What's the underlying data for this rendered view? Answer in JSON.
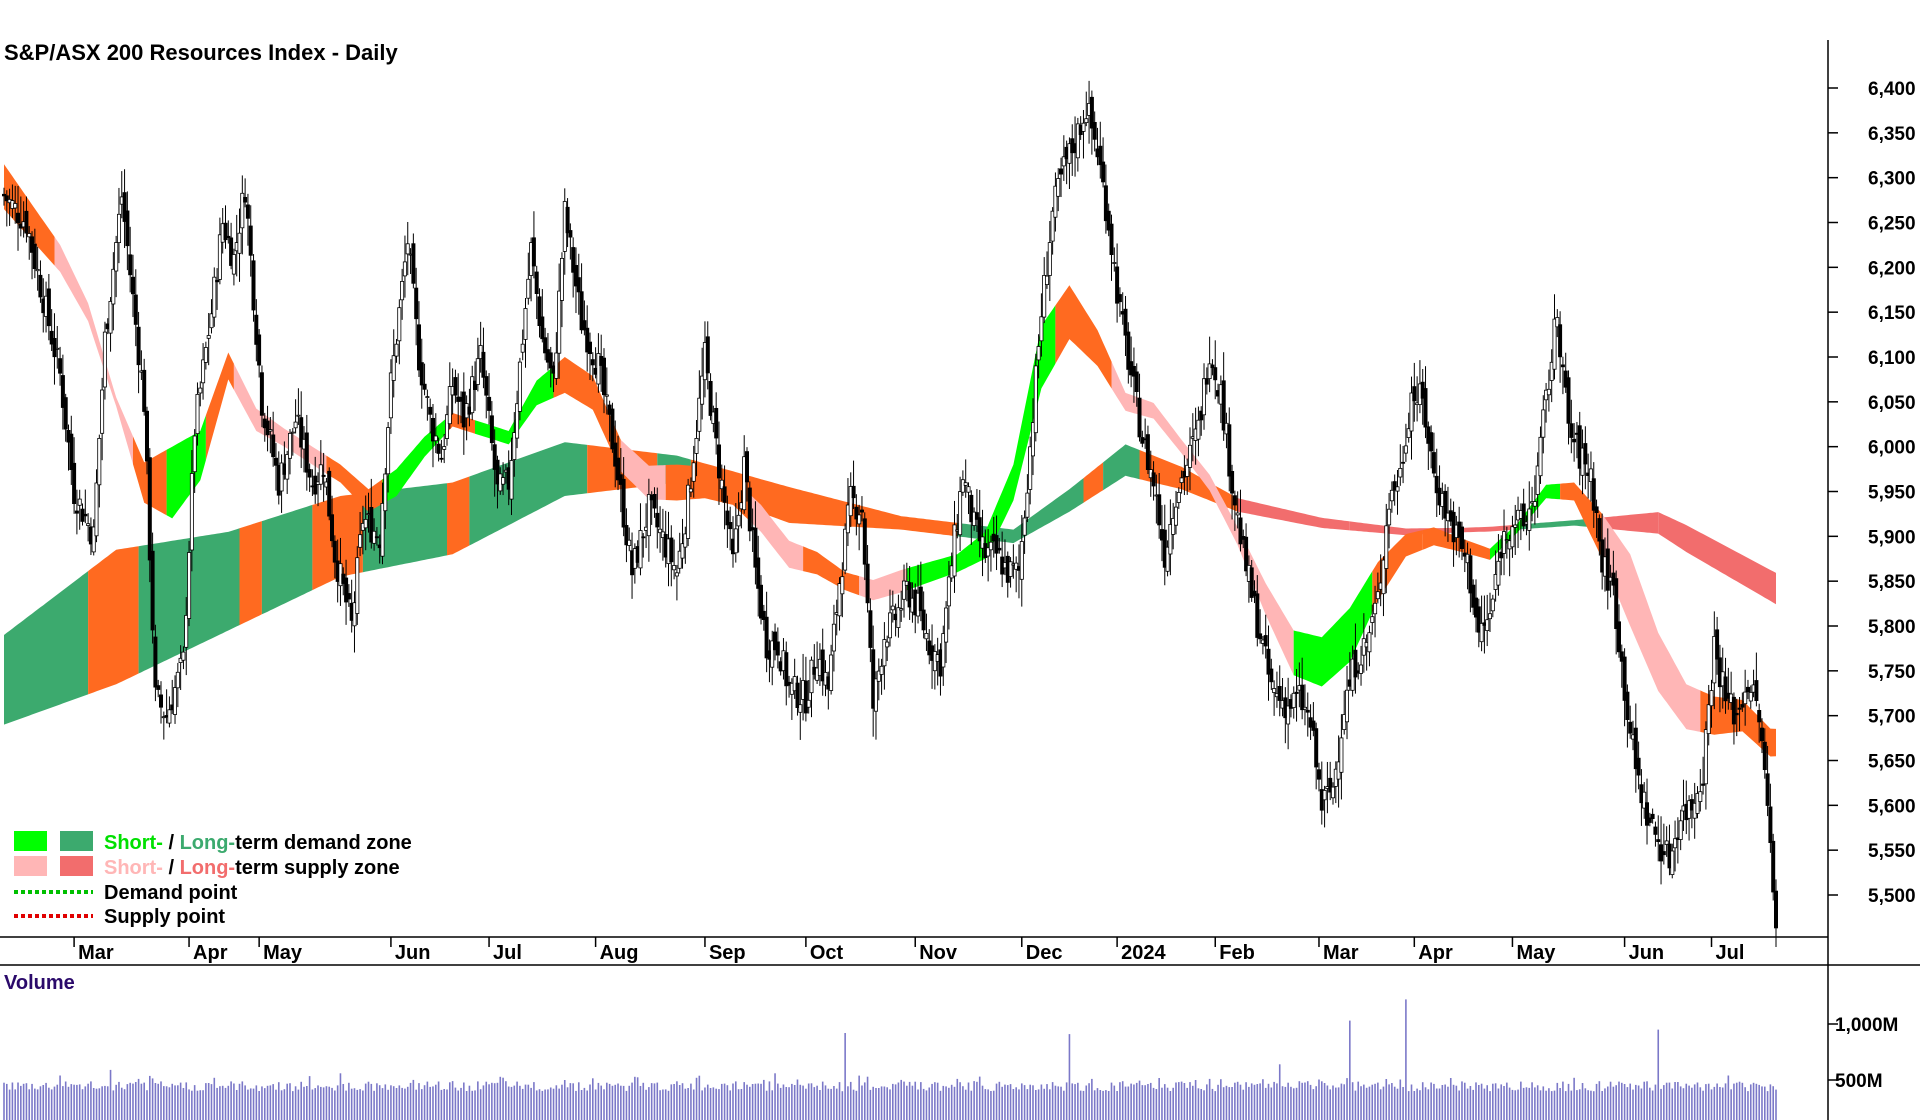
{
  "title": "S&P/ASX 200 Resources Index - Daily",
  "volume_title": "Volume",
  "colors": {
    "candle": "#000000",
    "short_demand": "#00ff00",
    "long_demand": "#3caa6e",
    "short_supply": "#ffb6b6",
    "long_supply": "#f26d6d",
    "transition_zone": "#ff6a20",
    "volume_bar": "#7b78c8",
    "demand_point": "#00c000",
    "supply_point": "#e00000"
  },
  "legend": {
    "row1_short": "Short-",
    "row1_sep": " / ",
    "row1_long": "Long-",
    "row1_rest": "term demand zone",
    "row2_short": "Short-",
    "row2_sep": " / ",
    "row2_long": "Long-",
    "row2_rest": "term supply zone",
    "row3": "Demand point",
    "row4": "Supply point"
  },
  "chart_data": {
    "type": "candlestick",
    "title": "S&P/ASX 200 Resources Index - Daily",
    "ylim": [
      5460,
      6450
    ],
    "y_ticks": [
      "6,400",
      "6,350",
      "6,300",
      "6,250",
      "6,200",
      "6,150",
      "6,100",
      "6,050",
      "6,000",
      "5,950",
      "5,900",
      "5,850",
      "5,800",
      "5,750",
      "5,700",
      "5,650",
      "5,600",
      "5,550",
      "5,500"
    ],
    "y_tick_values": [
      6400,
      6350,
      6300,
      6250,
      6200,
      6150,
      6100,
      6050,
      6000,
      5950,
      5900,
      5850,
      5800,
      5750,
      5700,
      5650,
      5600,
      5550,
      5500
    ],
    "x_labels": [
      "Mar",
      "Apr",
      "May",
      "Jun",
      "Jul",
      "Aug",
      "Sep",
      "Oct",
      "Nov",
      "Dec",
      "2024",
      "Feb",
      "Mar",
      "Apr",
      "May",
      "Jun",
      "Jul"
    ],
    "x_label_days": [
      25,
      66,
      91,
      138,
      173,
      211,
      250,
      286,
      325,
      363,
      397,
      432,
      469,
      503,
      538,
      578,
      609
    ],
    "trading_days": 633,
    "price_path_days": [
      0,
      8,
      13,
      20,
      25,
      32,
      36,
      42,
      50,
      54,
      58,
      64,
      68,
      74,
      78,
      82,
      86,
      92,
      98,
      104,
      110,
      114,
      118,
      124,
      128,
      134,
      138,
      144,
      148,
      152,
      156,
      160,
      164,
      170,
      176,
      180,
      184,
      188,
      192,
      196,
      200,
      206,
      212,
      218,
      224,
      230,
      236,
      240,
      244,
      250,
      254,
      260,
      264,
      268,
      272,
      276,
      280,
      286,
      290,
      294,
      298,
      302,
      306,
      310,
      314,
      318,
      322,
      326,
      330,
      334,
      338,
      342,
      346,
      350,
      354,
      358,
      362,
      366,
      370,
      374,
      378,
      382,
      386,
      390,
      394,
      398,
      402,
      406,
      410,
      414,
      418,
      422,
      426,
      430,
      434,
      438,
      442,
      446,
      452,
      458,
      462,
      466,
      470,
      474,
      478,
      482,
      486,
      490,
      494,
      498,
      502,
      506,
      510,
      514,
      518,
      522,
      526,
      530,
      534,
      538,
      542,
      546,
      550,
      554,
      558,
      562,
      566,
      570,
      574,
      578,
      582,
      586,
      590,
      594,
      598,
      602,
      606,
      610,
      614,
      618,
      622,
      626,
      630,
      632
    ],
    "price_path_close": [
      6280,
      6250,
      6180,
      6080,
      5950,
      5900,
      6120,
      6280,
      6050,
      5720,
      5700,
      5760,
      6020,
      6150,
      6250,
      6210,
      6290,
      6050,
      5960,
      6030,
      5960,
      5980,
      5880,
      5800,
      5920,
      5900,
      6070,
      6230,
      6100,
      6030,
      5990,
      6070,
      6030,
      6100,
      5950,
      5960,
      6090,
      6220,
      6120,
      6070,
      6260,
      6140,
      6090,
      5990,
      5860,
      5930,
      5890,
      5860,
      5940,
      6100,
      6000,
      5870,
      5980,
      5860,
      5780,
      5780,
      5730,
      5720,
      5770,
      5730,
      5850,
      5940,
      5930,
      5710,
      5790,
      5810,
      5840,
      5820,
      5780,
      5760,
      5870,
      5970,
      5910,
      5880,
      5880,
      5860,
      5860,
      6000,
      6150,
      6260,
      6310,
      6340,
      6380,
      6330,
      6250,
      6150,
      6080,
      6010,
      5960,
      5880,
      5950,
      5980,
      6020,
      6110,
      6060,
      5960,
      5880,
      5820,
      5730,
      5710,
      5720,
      5690,
      5600,
      5620,
      5710,
      5760,
      5780,
      5830,
      5940,
      5970,
      6060,
      6050,
      5970,
      5930,
      5900,
      5870,
      5790,
      5810,
      5890,
      5920,
      5910,
      5950,
      6050,
      6150,
      6020,
      5990,
      5970,
      5870,
      5840,
      5730,
      5640,
      5590,
      5560,
      5540,
      5590,
      5600,
      5640,
      5780,
      5720,
      5700,
      5740,
      5700,
      5560,
      5480
    ],
    "bands": {
      "long_mid_days": [
        0,
        40,
        80,
        120,
        160,
        200,
        240,
        280,
        320,
        360,
        380,
        400,
        420,
        440,
        470,
        500,
        530,
        560,
        590,
        633
      ],
      "long_mid": [
        5740,
        5810,
        5850,
        5900,
        5920,
        5975,
        5975,
        5935,
        5915,
        5900,
        5940,
        5985,
        5965,
        5935,
        5915,
        5905,
        5908,
        5915,
        5915,
        5840
      ],
      "long_width_days": [
        0,
        40,
        80,
        120,
        160,
        200,
        240,
        280,
        320,
        360,
        400,
        440,
        480,
        520,
        560,
        600,
        633
      ],
      "long_width": [
        100,
        150,
        110,
        90,
        80,
        60,
        30,
        40,
        15,
        15,
        35,
        15,
        10,
        5,
        6,
        30,
        35
      ],
      "long_zone_types": [
        [
          0,
          30,
          "demand"
        ],
        [
          30,
          48,
          "transition"
        ],
        [
          48,
          84,
          "demand"
        ],
        [
          84,
          92,
          "transition"
        ],
        [
          92,
          110,
          "demand"
        ],
        [
          110,
          128,
          "transition"
        ],
        [
          128,
          158,
          "demand"
        ],
        [
          158,
          166,
          "transition"
        ],
        [
          166,
          208,
          "demand"
        ],
        [
          208,
          233,
          "transition"
        ],
        [
          233,
          245,
          "demand"
        ],
        [
          245,
          340,
          "transition"
        ],
        [
          340,
          362,
          "demand"
        ],
        [
          362,
          385,
          "demand"
        ],
        [
          385,
          392,
          "transition"
        ],
        [
          392,
          405,
          "demand"
        ],
        [
          405,
          440,
          "transition"
        ],
        [
          440,
          480,
          "supply"
        ],
        [
          480,
          540,
          "supply"
        ],
        [
          540,
          570,
          "demand"
        ],
        [
          570,
          590,
          "supply"
        ],
        [
          590,
          633,
          "supply"
        ]
      ],
      "short_mid_days": [
        0,
        10,
        20,
        30,
        40,
        50,
        60,
        70,
        80,
        90,
        100,
        110,
        120,
        130,
        140,
        150,
        160,
        170,
        180,
        190,
        200,
        210,
        220,
        230,
        240,
        250,
        260,
        270,
        280,
        290,
        300,
        310,
        320,
        330,
        340,
        350,
        360,
        370,
        380,
        390,
        400,
        410,
        420,
        430,
        440,
        450,
        460,
        470,
        480,
        490,
        500,
        510,
        520,
        530,
        540,
        550,
        560,
        570,
        580,
        590,
        600,
        610,
        620,
        630
      ],
      "short_mid": [
        6290,
        6250,
        6210,
        6150,
        6050,
        5960,
        5960,
        5990,
        6090,
        6030,
        6010,
        5990,
        5970,
        5940,
        5960,
        6000,
        6030,
        6020,
        6010,
        6060,
        6080,
        6060,
        5990,
        5960,
        5960,
        5960,
        5950,
        5920,
        5880,
        5870,
        5850,
        5840,
        5850,
        5860,
        5870,
        5890,
        5960,
        6100,
        6150,
        6110,
        6050,
        6040,
        6000,
        5960,
        5900,
        5830,
        5770,
        5760,
        5790,
        5850,
        5890,
        5900,
        5890,
        5880,
        5910,
        5950,
        5950,
        5900,
        5840,
        5760,
        5710,
        5700,
        5700,
        5670
      ],
      "short_width_days": [
        0,
        20,
        40,
        60,
        80,
        100,
        120,
        140,
        160,
        180,
        200,
        220,
        240,
        260,
        280,
        300,
        320,
        340,
        360,
        370,
        380,
        400,
        420,
        440,
        460,
        480,
        500,
        520,
        540,
        560,
        580,
        600,
        620,
        633
      ],
      "short_width": [
        50,
        30,
        10,
        80,
        30,
        20,
        20,
        30,
        15,
        15,
        40,
        35,
        40,
        30,
        30,
        20,
        25,
        20,
        40,
        70,
        60,
        20,
        15,
        20,
        50,
        60,
        25,
        15,
        10,
        20,
        80,
        50,
        35,
        30
      ],
      "short_zone_types": [
        [
          0,
          18,
          "transition"
        ],
        [
          18,
          46,
          "supply"
        ],
        [
          46,
          58,
          "transition"
        ],
        [
          58,
          72,
          "demand"
        ],
        [
          72,
          82,
          "transition"
        ],
        [
          82,
          115,
          "supply"
        ],
        [
          115,
          135,
          "transition"
        ],
        [
          135,
          158,
          "demand"
        ],
        [
          158,
          168,
          "transition"
        ],
        [
          168,
          196,
          "demand"
        ],
        [
          196,
          220,
          "transition"
        ],
        [
          220,
          236,
          "supply"
        ],
        [
          236,
          266,
          "transition"
        ],
        [
          266,
          285,
          "supply"
        ],
        [
          285,
          305,
          "transition"
        ],
        [
          305,
          322,
          "supply"
        ],
        [
          322,
          362,
          "demand"
        ],
        [
          362,
          375,
          "demand"
        ],
        [
          375,
          395,
          "transition"
        ],
        [
          395,
          405,
          "supply"
        ],
        [
          405,
          440,
          "supply"
        ],
        [
          440,
          460,
          "supply"
        ],
        [
          460,
          488,
          "demand"
        ],
        [
          488,
          506,
          "transition"
        ],
        [
          506,
          530,
          "transition"
        ],
        [
          530,
          555,
          "demand"
        ],
        [
          555,
          570,
          "transition"
        ],
        [
          570,
          605,
          "supply"
        ],
        [
          605,
          633,
          "transition"
        ]
      ]
    },
    "volume": {
      "y_ticks": [
        "1,000M",
        "500M"
      ],
      "y_tick_values": [
        1000,
        500
      ],
      "ylim": [
        370,
        1230
      ],
      "spike_days": [
        20,
        38,
        75,
        120,
        200,
        247,
        275,
        300,
        348,
        380,
        430,
        455,
        480,
        500,
        560,
        590,
        615
      ],
      "spike_values": [
        540,
        590,
        520,
        560,
        500,
        520,
        560,
        920,
        530,
        910,
        510,
        640,
        1030,
        1220,
        520,
        950,
        540
      ]
    }
  }
}
